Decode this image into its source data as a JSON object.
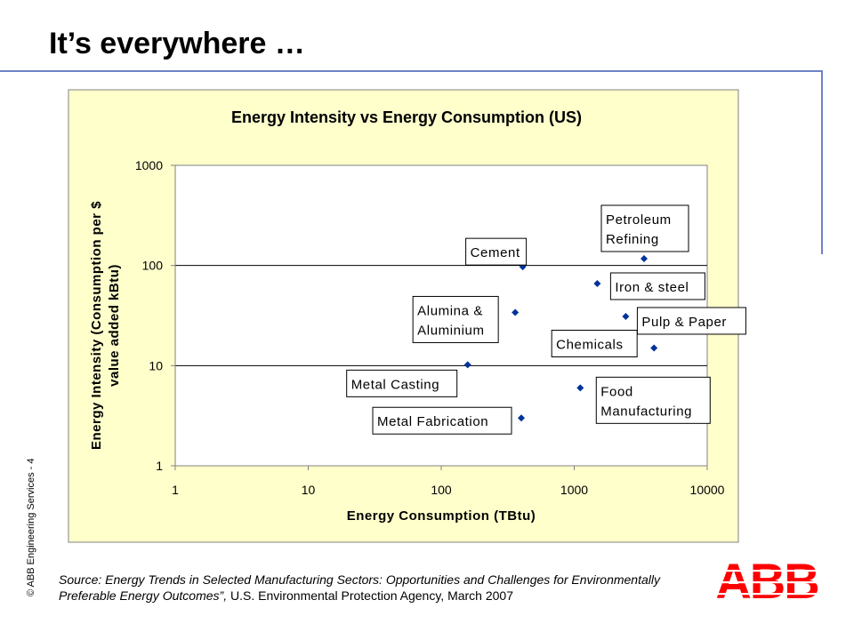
{
  "slide": {
    "title": "It’s everywhere …",
    "copyright": "© ABB Engineering Services - 4",
    "source_text": "Source: Energy Trends in Selected Manufacturing Sectors: Opportunities and Challenges for Environmentally Preferable Energy Outcomes”,",
    "source_agency": "U.S. Environmental Protection Agency, March 2007",
    "logo_text": "ABB"
  },
  "colors": {
    "accent_rule": "#6f83c6",
    "chart_background": "#ffffcc",
    "marker": "#003399",
    "abb_red": "#ff0000"
  },
  "chart_data": {
    "type": "scatter",
    "title": "Energy Intensity vs Energy Consumption (US)",
    "xlabel": "Energy Consumption (TBtu)",
    "ylabel_lines": [
      "Energy Intensity (Consumption per $",
      "value added kBtu)"
    ],
    "xscale": "log",
    "yscale": "log",
    "xlim": [
      1,
      10000
    ],
    "ylim": [
      1,
      1000
    ],
    "xticks": [
      1,
      10,
      100,
      1000,
      10000
    ],
    "yticks": [
      1,
      10,
      100,
      1000
    ],
    "grid": "horizontal major gridlines",
    "legend": "none",
    "points": [
      {
        "name": "Cement",
        "label_lines": [
          "Cement"
        ],
        "x": 410,
        "y": 97
      },
      {
        "name": "Petroleum Refining",
        "label_lines": [
          "Petroleum",
          "Refining"
        ],
        "x": 3350,
        "y": 117
      },
      {
        "name": "Iron & steel",
        "label_lines": [
          "Iron & steel"
        ],
        "x": 1490,
        "y": 66
      },
      {
        "name": "Alumina & Aluminium",
        "label_lines": [
          "Alumina &",
          "Aluminium"
        ],
        "x": 360,
        "y": 34
      },
      {
        "name": "Pulp & Paper",
        "label_lines": [
          "Pulp & Paper"
        ],
        "x": 2440,
        "y": 31
      },
      {
        "name": "Chemicals",
        "label_lines": [
          "Chemicals"
        ],
        "x": 3980,
        "y": 15
      },
      {
        "name": "Metal Casting",
        "label_lines": [
          "Metal Casting"
        ],
        "x": 158,
        "y": 10.2
      },
      {
        "name": "Food Manufacturing",
        "label_lines": [
          "Food",
          "Manufacturing"
        ],
        "x": 1110,
        "y": 6
      },
      {
        "name": "Metal Fabrication",
        "label_lines": [
          "Metal Fabrication"
        ],
        "x": 400,
        "y": 3
      }
    ]
  }
}
